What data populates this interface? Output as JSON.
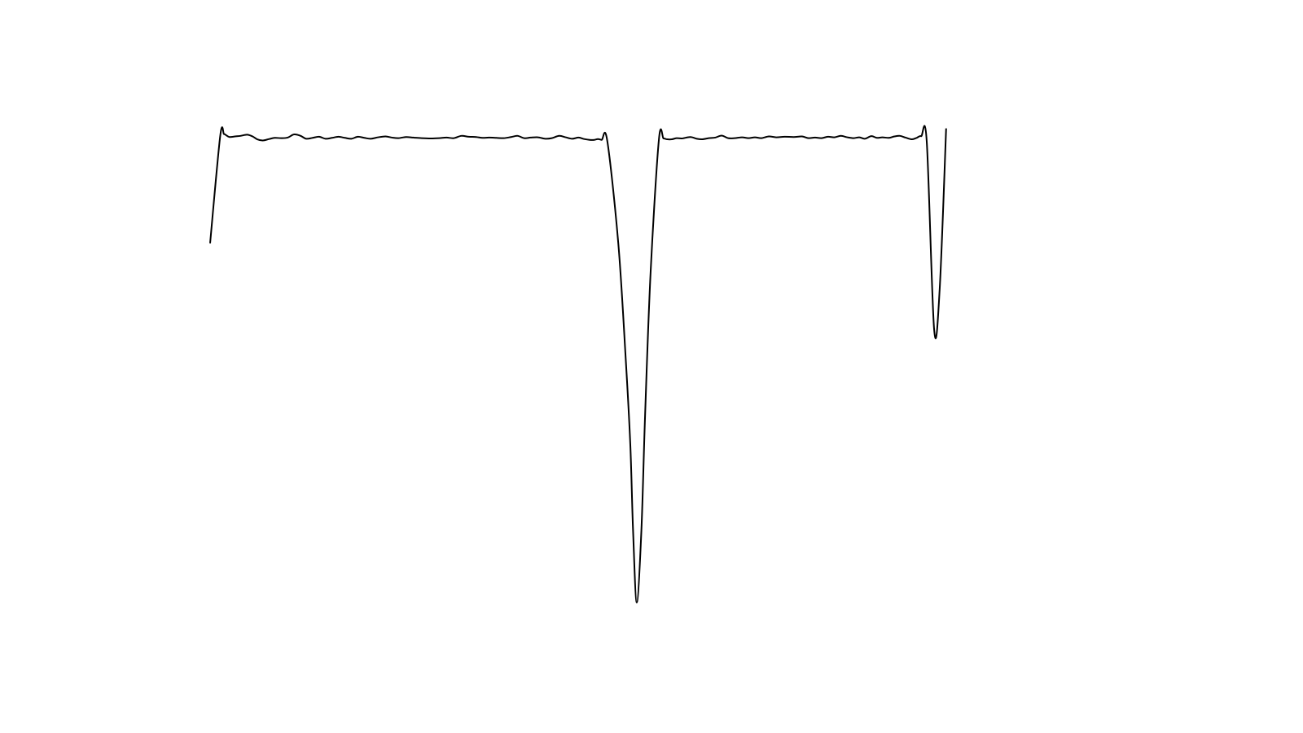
{
  "chart_data": {
    "type": "line",
    "title": "",
    "xlabel": "",
    "ylabel": "",
    "axes_visible": false,
    "grid": false,
    "legend": "none",
    "line_color": "#000000",
    "xlim": [
      0,
      1
    ],
    "ylim": [
      -0.35,
      1.45
    ],
    "series": [
      {
        "points": [
          [
            0.0,
            1.0
          ],
          [
            0.011,
            1.375
          ],
          [
            0.015,
            1.38
          ],
          [
            0.017,
            1.377
          ],
          [
            0.021,
            1.37
          ],
          [
            0.027,
            1.372
          ],
          [
            0.033,
            1.374
          ],
          [
            0.04,
            1.378
          ],
          [
            0.046,
            1.372
          ],
          [
            0.051,
            1.362
          ],
          [
            0.057,
            1.358
          ],
          [
            0.064,
            1.363
          ],
          [
            0.07,
            1.367
          ],
          [
            0.077,
            1.366
          ],
          [
            0.084,
            1.368
          ],
          [
            0.091,
            1.379
          ],
          [
            0.098,
            1.374
          ],
          [
            0.104,
            1.364
          ],
          [
            0.111,
            1.367
          ],
          [
            0.118,
            1.371
          ],
          [
            0.125,
            1.364
          ],
          [
            0.132,
            1.367
          ],
          [
            0.139,
            1.371
          ],
          [
            0.146,
            1.367
          ],
          [
            0.153,
            1.364
          ],
          [
            0.16,
            1.371
          ],
          [
            0.167,
            1.367
          ],
          [
            0.174,
            1.364
          ],
          [
            0.182,
            1.369
          ],
          [
            0.19,
            1.372
          ],
          [
            0.197,
            1.368
          ],
          [
            0.204,
            1.366
          ],
          [
            0.212,
            1.37
          ],
          [
            0.22,
            1.368
          ],
          [
            0.229,
            1.366
          ],
          [
            0.239,
            1.365
          ],
          [
            0.248,
            1.366
          ],
          [
            0.256,
            1.368
          ],
          [
            0.264,
            1.366
          ],
          [
            0.272,
            1.374
          ],
          [
            0.28,
            1.371
          ],
          [
            0.288,
            1.37
          ],
          [
            0.295,
            1.367
          ],
          [
            0.302,
            1.368
          ],
          [
            0.31,
            1.367
          ],
          [
            0.318,
            1.366
          ],
          [
            0.326,
            1.37
          ],
          [
            0.333,
            1.374
          ],
          [
            0.34,
            1.366
          ],
          [
            0.347,
            1.368
          ],
          [
            0.355,
            1.369
          ],
          [
            0.363,
            1.364
          ],
          [
            0.37,
            1.366
          ],
          [
            0.378,
            1.374
          ],
          [
            0.385,
            1.369
          ],
          [
            0.392,
            1.364
          ],
          [
            0.399,
            1.368
          ],
          [
            0.405,
            1.363
          ],
          [
            0.411,
            1.36
          ],
          [
            0.416,
            1.36
          ],
          [
            0.42,
            1.363
          ],
          [
            0.424,
            1.36
          ],
          [
            0.43,
            1.358
          ],
          [
            0.442,
            1.0
          ],
          [
            0.45,
            0.6
          ],
          [
            0.455,
            0.3
          ],
          [
            0.458,
            0.0
          ],
          [
            0.462,
            -0.25
          ],
          [
            0.467,
            0.0
          ],
          [
            0.471,
            0.4
          ],
          [
            0.477,
            0.9
          ],
          [
            0.486,
            1.362
          ],
          [
            0.491,
            1.365
          ],
          [
            0.495,
            1.362
          ],
          [
            0.5,
            1.362
          ],
          [
            0.505,
            1.366
          ],
          [
            0.511,
            1.365
          ],
          [
            0.52,
            1.37
          ],
          [
            0.527,
            1.364
          ],
          [
            0.533,
            1.362
          ],
          [
            0.54,
            1.366
          ],
          [
            0.547,
            1.368
          ],
          [
            0.554,
            1.375
          ],
          [
            0.561,
            1.366
          ],
          [
            0.568,
            1.366
          ],
          [
            0.576,
            1.369
          ],
          [
            0.583,
            1.366
          ],
          [
            0.59,
            1.369
          ],
          [
            0.597,
            1.366
          ],
          [
            0.605,
            1.372
          ],
          [
            0.613,
            1.369
          ],
          [
            0.622,
            1.371
          ],
          [
            0.632,
            1.37
          ],
          [
            0.641,
            1.372
          ],
          [
            0.648,
            1.366
          ],
          [
            0.655,
            1.368
          ],
          [
            0.662,
            1.366
          ],
          [
            0.669,
            1.371
          ],
          [
            0.676,
            1.369
          ],
          [
            0.683,
            1.374
          ],
          [
            0.69,
            1.369
          ],
          [
            0.697,
            1.366
          ],
          [
            0.703,
            1.369
          ],
          [
            0.709,
            1.364
          ],
          [
            0.716,
            1.373
          ],
          [
            0.722,
            1.367
          ],
          [
            0.728,
            1.369
          ],
          [
            0.735,
            1.367
          ],
          [
            0.741,
            1.372
          ],
          [
            0.747,
            1.374
          ],
          [
            0.753,
            1.368
          ],
          [
            0.76,
            1.362
          ],
          [
            0.765,
            1.367
          ],
          [
            0.77,
            1.373
          ],
          [
            0.776,
            1.354
          ],
          [
            0.784,
            0.7
          ],
          [
            0.79,
            0.84
          ],
          [
            0.797,
            1.4
          ]
        ]
      }
    ]
  }
}
